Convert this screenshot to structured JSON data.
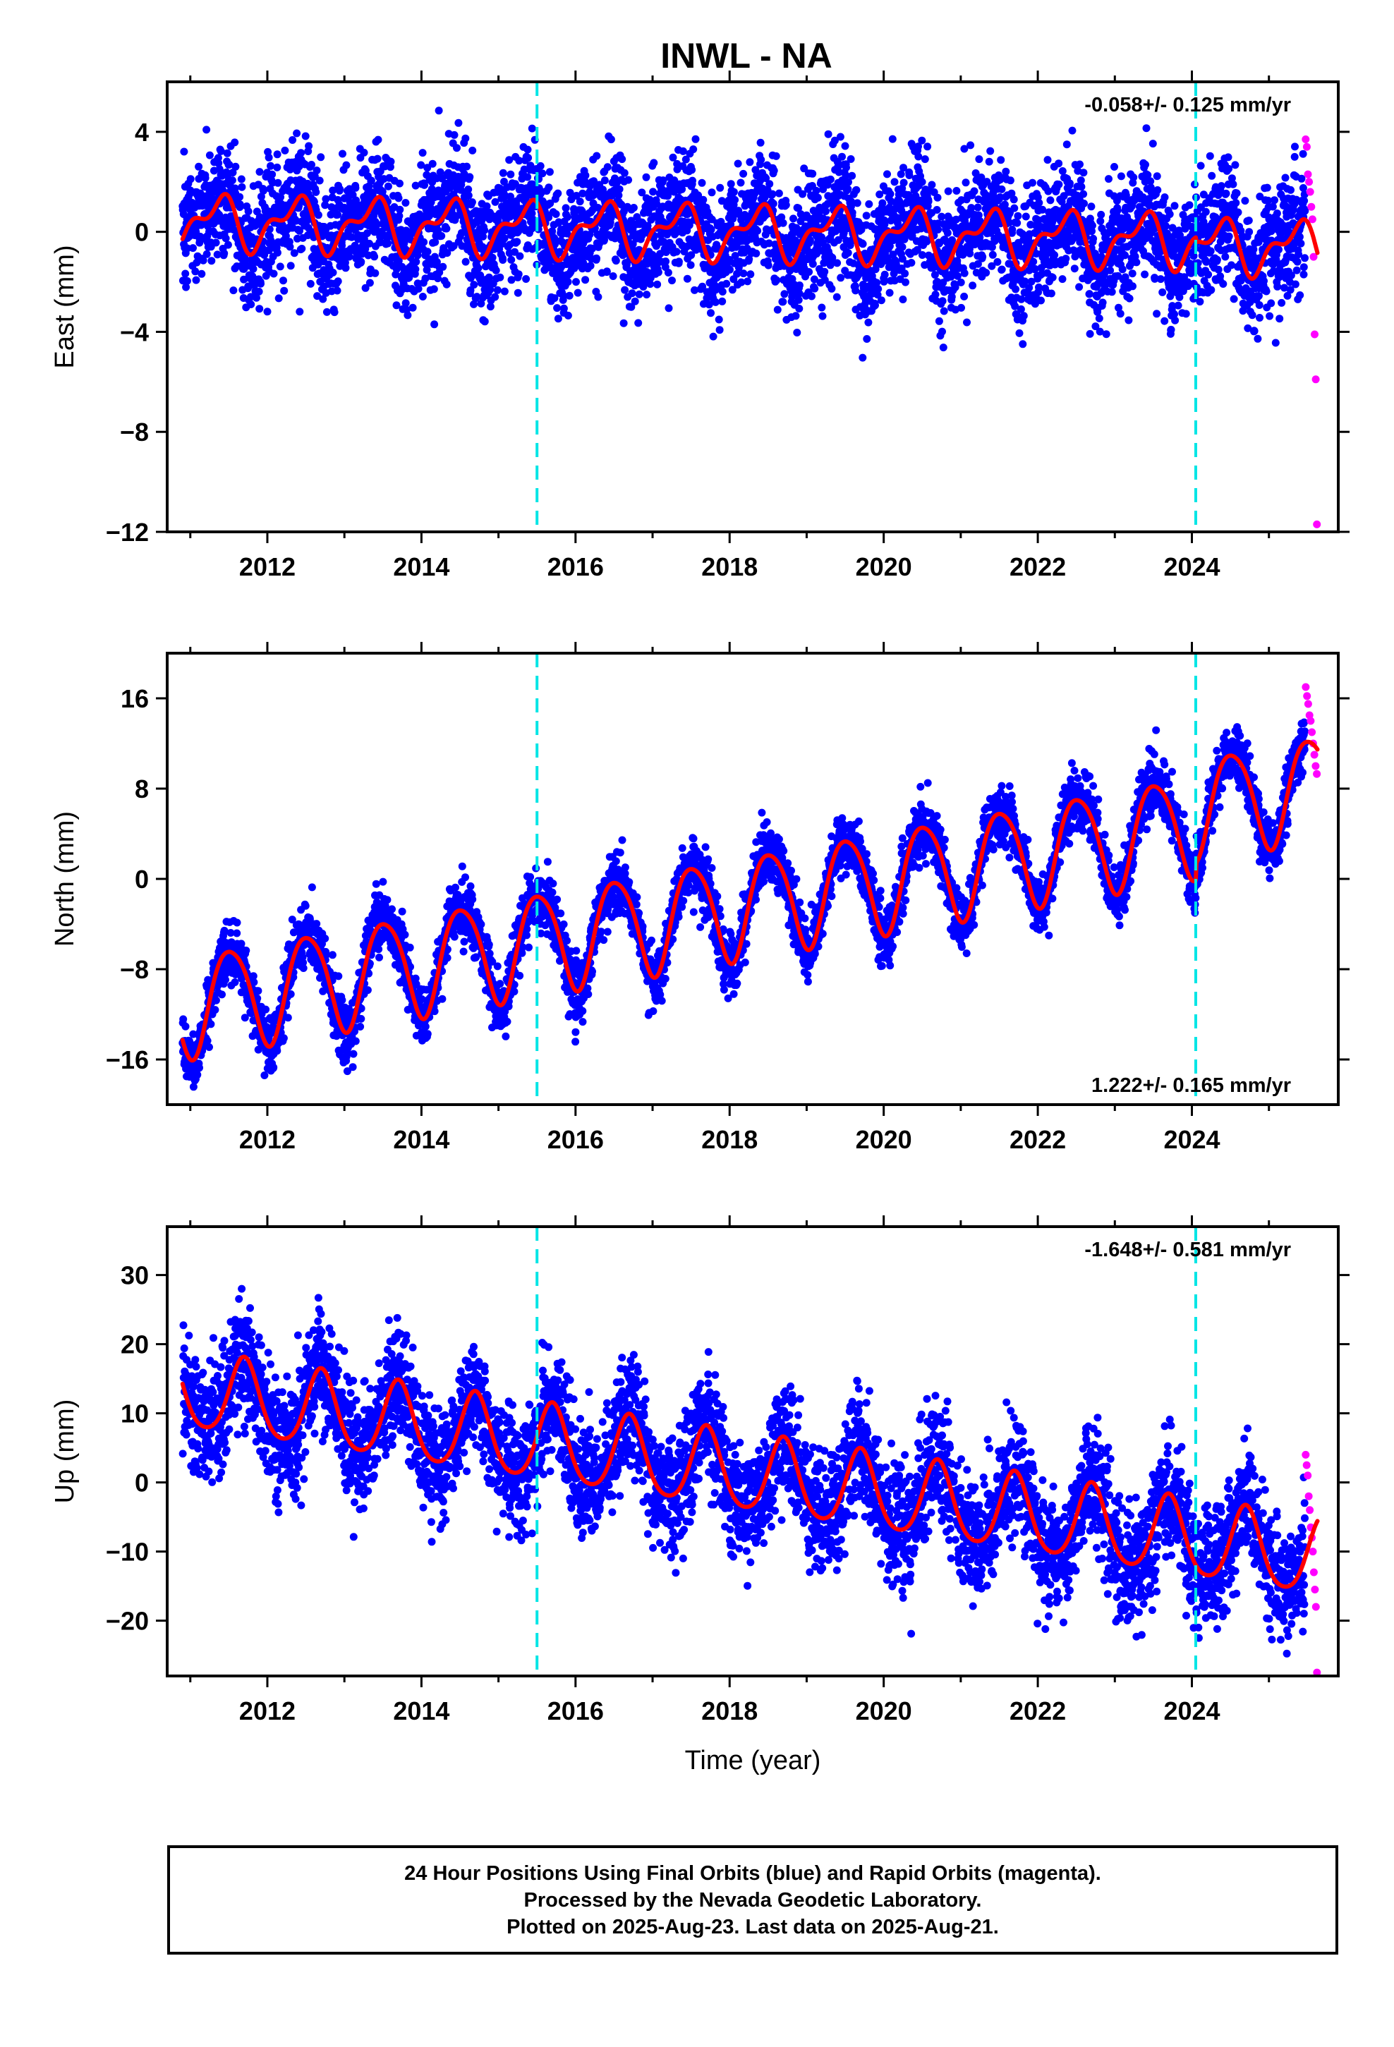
{
  "title": "INWL - NA",
  "xlabel": "Time (year)",
  "colors": {
    "final_orbits": "#0000ff",
    "rapid_orbits": "#ff00ff",
    "model_fit": "#ff0000",
    "offsets": "#00e5e5"
  },
  "footer": {
    "line1": "24 Hour Positions Using Final Orbits (blue) and Rapid Orbits (magenta).",
    "line2": "Processed by the Nevada Geodetic Laboratory.",
    "line3": "Plotted on 2025-Aug-23. Last data on 2025-Aug-21."
  },
  "chart_data": [
    {
      "type": "scatter",
      "name": "east",
      "ylabel": "East (mm)",
      "rate_label": "-0.058+/- 0.125 mm/yr",
      "rate_position": "top-right",
      "xlim": [
        2010.7,
        2025.9
      ],
      "ylim": [
        -12,
        6
      ],
      "xticks": [
        2012,
        2014,
        2016,
        2018,
        2020,
        2022,
        2024
      ],
      "yticks": [
        4,
        0,
        -4,
        -8,
        -12
      ],
      "ytick_labels": [
        "4",
        "0",
        "−4",
        "−8",
        "−12"
      ],
      "offset_epochs": [
        2015.5,
        2024.05
      ],
      "data_span": [
        2010.9,
        2025.47
      ],
      "rapid_span": [
        2025.47,
        2025.63
      ],
      "model": {
        "mean": 0.0,
        "rate_mm_per_yr": -0.058,
        "annual_amp": 0.9,
        "annual_peak": 0.35,
        "semiannual_amp": 0.5,
        "semiannual_peak": 0.0,
        "offset_jumps": [
          0.0,
          -0.2
        ],
        "ref_epoch": 2018.0
      },
      "scatter_sigma": 1.2,
      "rapid_values": [
        3.7,
        3.4,
        2.3,
        2.0,
        1.6,
        1.0,
        0.5,
        -1.0,
        -4.1,
        -5.9,
        -11.7
      ]
    },
    {
      "type": "scatter",
      "name": "north",
      "ylabel": "North (mm)",
      "rate_label": "1.222+/- 0.165 mm/yr",
      "rate_position": "bottom-right",
      "xlim": [
        2010.7,
        2025.9
      ],
      "ylim": [
        -20,
        20
      ],
      "xticks": [
        2012,
        2014,
        2016,
        2018,
        2020,
        2022,
        2024
      ],
      "yticks": [
        16,
        8,
        0,
        -8,
        -16
      ],
      "ytick_labels": [
        "16",
        "8",
        "0",
        "−8",
        "−16"
      ],
      "offset_epochs": [
        2015.5,
        2024.05
      ],
      "data_span": [
        2010.9,
        2025.47
      ],
      "rapid_span": [
        2025.47,
        2025.63
      ],
      "model": {
        "mean": -2.5,
        "rate_mm_per_yr": 1.222,
        "annual_amp": 4.5,
        "annual_peak": 0.52,
        "semiannual_amp": 0.6,
        "semiannual_peak": 0.3,
        "offset_jumps": [
          0.0,
          1.5
        ],
        "ref_epoch": 2018.0
      },
      "scatter_sigma": 1.3,
      "rapid_values": [
        17.0,
        16.2,
        15.5,
        14.5,
        14.0,
        13.0,
        12.0,
        11.0,
        10.0,
        9.3
      ]
    },
    {
      "type": "scatter",
      "name": "up",
      "ylabel": "Up (mm)",
      "rate_label": "-1.648+/- 0.581 mm/yr",
      "rate_position": "top-right",
      "xlim": [
        2010.7,
        2025.9
      ],
      "ylim": [
        -28,
        37
      ],
      "xticks": [
        2012,
        2014,
        2016,
        2018,
        2020,
        2022,
        2024
      ],
      "yticks": [
        30,
        20,
        10,
        0,
        -10,
        -20
      ],
      "ytick_labels": [
        "30",
        "20",
        "10",
        "0",
        "−10",
        "−20"
      ],
      "offset_epochs": [
        2015.5,
        2024.05
      ],
      "data_span": [
        2010.9,
        2025.47
      ],
      "rapid_span": [
        2025.47,
        2025.63
      ],
      "model": {
        "mean": 1.5,
        "rate_mm_per_yr": -1.648,
        "annual_amp": 5.5,
        "annual_peak": 0.7,
        "semiannual_amp": 0.8,
        "semiannual_peak": 0.2,
        "offset_jumps": [
          0.0,
          0.0
        ],
        "ref_epoch": 2018.0
      },
      "scatter_sigma": 4.2,
      "rapid_values": [
        4.0,
        2.5,
        1.0,
        -2.0,
        -4.0,
        -6.5,
        -8.0,
        -10.0,
        -13.0,
        -15.5,
        -18.0,
        -27.5
      ]
    }
  ]
}
